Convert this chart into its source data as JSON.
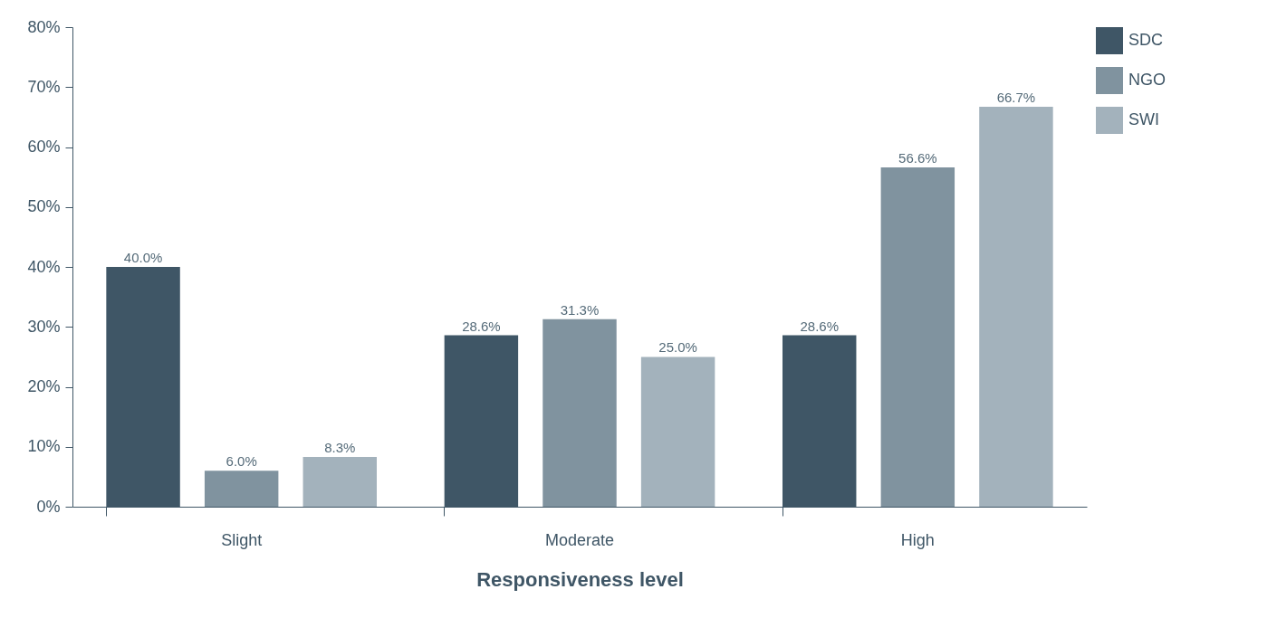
{
  "chart_data": {
    "type": "bar",
    "xlabel": "Responsiveness level",
    "categories": [
      "Slight",
      "Moderate",
      "High"
    ],
    "series": [
      {
        "name": "SDC",
        "color": "#3f5666",
        "values": [
          40.0,
          28.6,
          28.6
        ],
        "value_labels": [
          "40.0%",
          "28.6%",
          "28.6%"
        ]
      },
      {
        "name": "NGO",
        "color": "#80939f",
        "values": [
          6.0,
          31.3,
          56.6
        ],
        "value_labels": [
          "6.0%",
          "31.3%",
          "56.6%"
        ]
      },
      {
        "name": "SWI",
        "color": "#a3b2bc",
        "values": [
          8.3,
          25.0,
          66.7
        ],
        "value_labels": [
          "8.3%",
          "25.0%",
          "66.7%"
        ]
      }
    ],
    "ylim": [
      0,
      80
    ],
    "yticks": [
      {
        "value": 0,
        "label": "0%"
      },
      {
        "value": 10,
        "label": "10%"
      },
      {
        "value": 20,
        "label": "20%"
      },
      {
        "value": 30,
        "label": "30%"
      },
      {
        "value": 40,
        "label": "40%"
      },
      {
        "value": 50,
        "label": "50%"
      },
      {
        "value": 60,
        "label": "60%"
      },
      {
        "value": 70,
        "label": "70%"
      },
      {
        "value": 80,
        "label": "80%"
      }
    ],
    "grid": false,
    "legend": "right"
  }
}
